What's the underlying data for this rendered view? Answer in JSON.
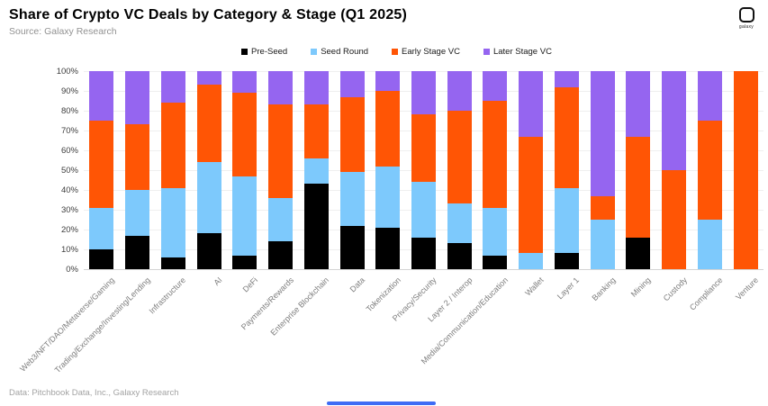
{
  "header": {
    "title": "Share of Crypto VC Deals by Category & Stage (Q1 2025)",
    "source": "Source: Galaxy Research"
  },
  "logo": {
    "label": "galaxy"
  },
  "footer": {
    "credit": "Data: Pitchbook Data, Inc., Galaxy Research"
  },
  "scrollbar": {
    "color": "#3e6cf5"
  },
  "chart_data": {
    "type": "bar",
    "stacked": true,
    "orientation": "vertical",
    "title": "Share of Crypto VC Deals by Category & Stage (Q1 2025)",
    "xlabel": "",
    "ylabel": "",
    "ylim": [
      0,
      100
    ],
    "yticks": [
      "0%",
      "10%",
      "20%",
      "30%",
      "40%",
      "50%",
      "60%",
      "70%",
      "80%",
      "90%",
      "100%"
    ],
    "grid": true,
    "legend_position": "top",
    "units": "percent of deals",
    "categories": [
      "Web3/NFT/DAO/Metaverse/Gaming",
      "Trading/Exchange/Investing/Lending",
      "Infrastructure",
      "AI",
      "DeFi",
      "Payments/Rewards",
      "Enterprise Blockchain",
      "Data",
      "Tokenization",
      "Privacy/Security",
      "Layer 2 / Interop",
      "Media/Communication/Education",
      "Wallet",
      "Layer 1",
      "Banking",
      "Mining",
      "Custody",
      "Compliance",
      "Venture"
    ],
    "series": [
      {
        "name": "Pre-Seed",
        "color": "#000000",
        "values": [
          10,
          17,
          6,
          18,
          7,
          14,
          43,
          22,
          21,
          16,
          13,
          7,
          0,
          8,
          0,
          16,
          0,
          0,
          0
        ]
      },
      {
        "name": "Seed Round",
        "color": "#7dc9fc",
        "values": [
          21,
          23,
          35,
          36,
          40,
          22,
          13,
          27,
          31,
          28,
          20,
          24,
          8,
          33,
          25,
          0,
          0,
          25,
          0
        ]
      },
      {
        "name": "Early Stage VC",
        "color": "#ff5505",
        "values": [
          44,
          33,
          43,
          39,
          42,
          47,
          27,
          38,
          38,
          34,
          47,
          54,
          59,
          51,
          12,
          51,
          50,
          50,
          100
        ]
      },
      {
        "name": "Later Stage VC",
        "color": "#9565f0",
        "values": [
          25,
          27,
          16,
          7,
          11,
          17,
          17,
          13,
          10,
          22,
          20,
          15,
          33,
          8,
          63,
          33,
          50,
          25,
          0
        ]
      }
    ]
  }
}
